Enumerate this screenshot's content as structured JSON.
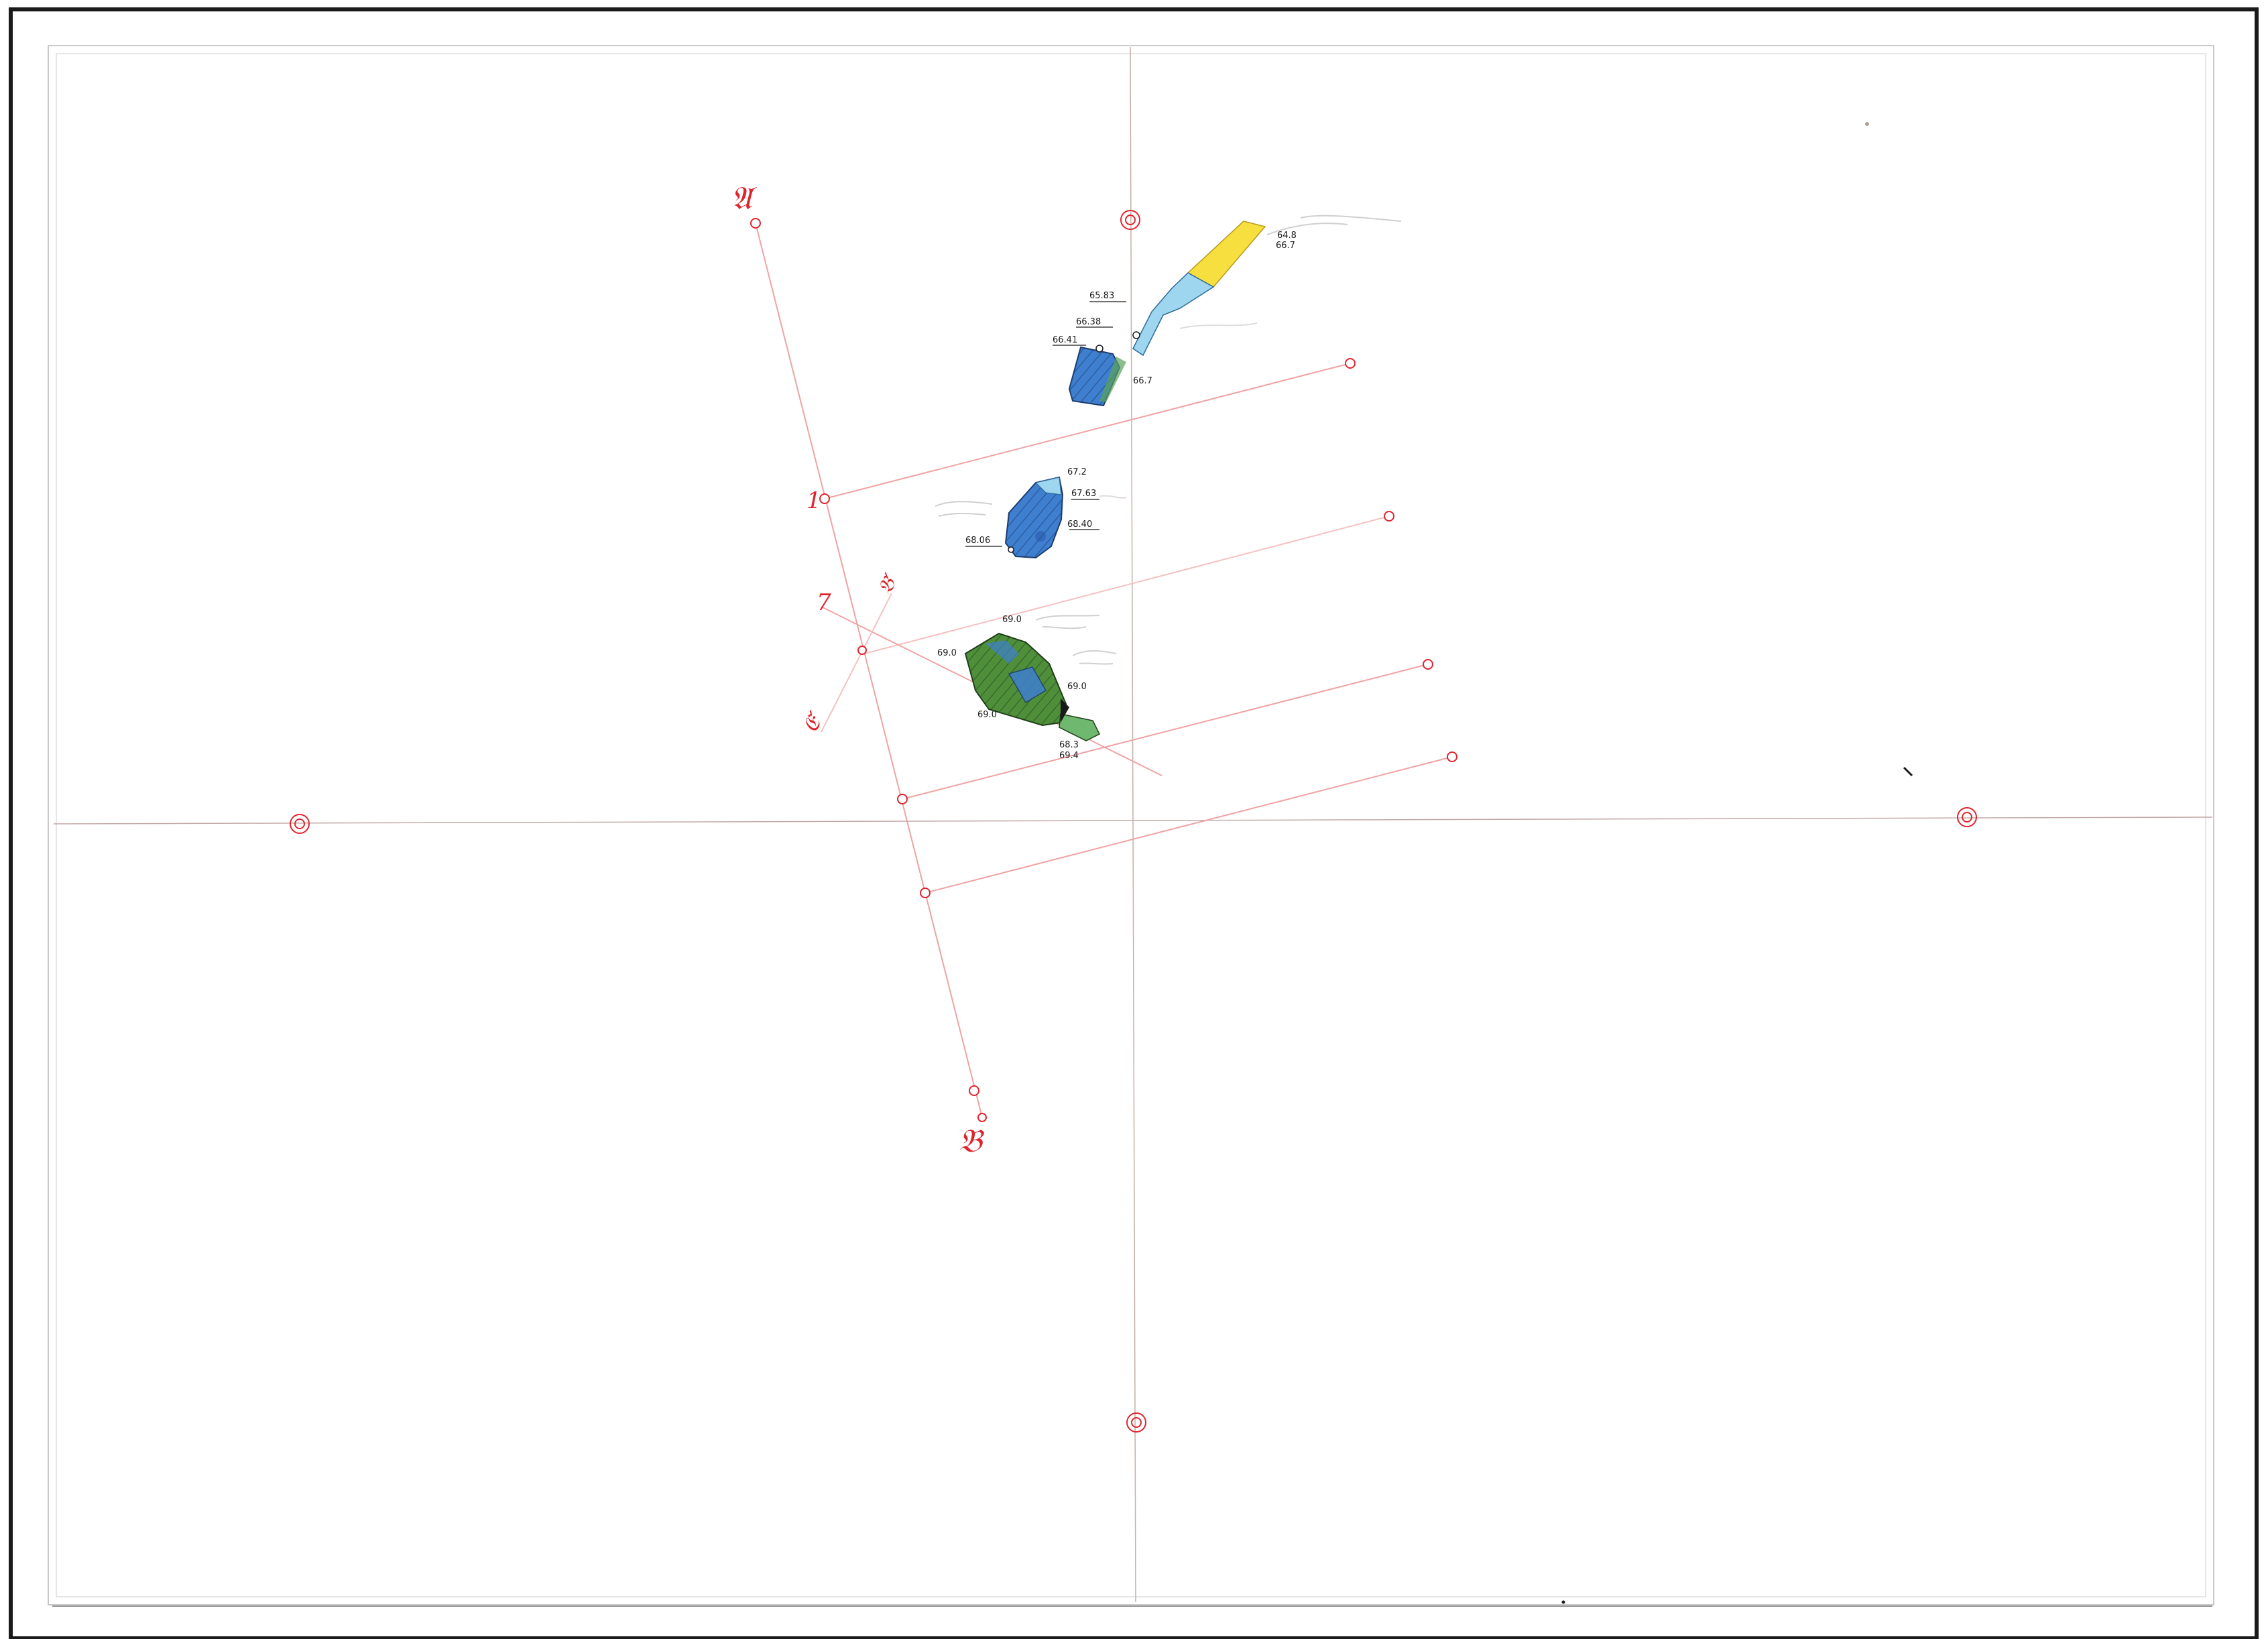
{
  "colors": {
    "frame": "#1a1a1a",
    "border_inner": "#c9c9c9",
    "axis": "#b08080",
    "survey": "#e0242e",
    "fill_blue": "#3f7fd0",
    "fill_light_blue": "#9fd6ef",
    "fill_green": "#4f8f3a",
    "fill_yellow": "#f7df3f"
  },
  "points": {
    "A": "𝔄",
    "B": "𝔅",
    "B_prime": "𝔅′",
    "C_prime": "𝔈′",
    "one": "1",
    "seven": "7"
  },
  "shaft_upper": {
    "top_elev_a": "64.8",
    "top_elev_b": "66.7",
    "landing_elev": "65.83",
    "step_elev": "66.38",
    "left_elev": "66.41",
    "bottom_elev": "66.7"
  },
  "shaft_middle": {
    "top_elev": "67.2",
    "right_elev_a": "67.63",
    "right_elev_b": "68.40",
    "left_elev": "68.06"
  },
  "shaft_lower": {
    "top_elev": "69.0",
    "left_elev": "69.0",
    "right_elev": "69.0",
    "bottom_left_elev": "69.0",
    "bottom_elev_a": "68.3",
    "bottom_elev_b": "69.4"
  }
}
